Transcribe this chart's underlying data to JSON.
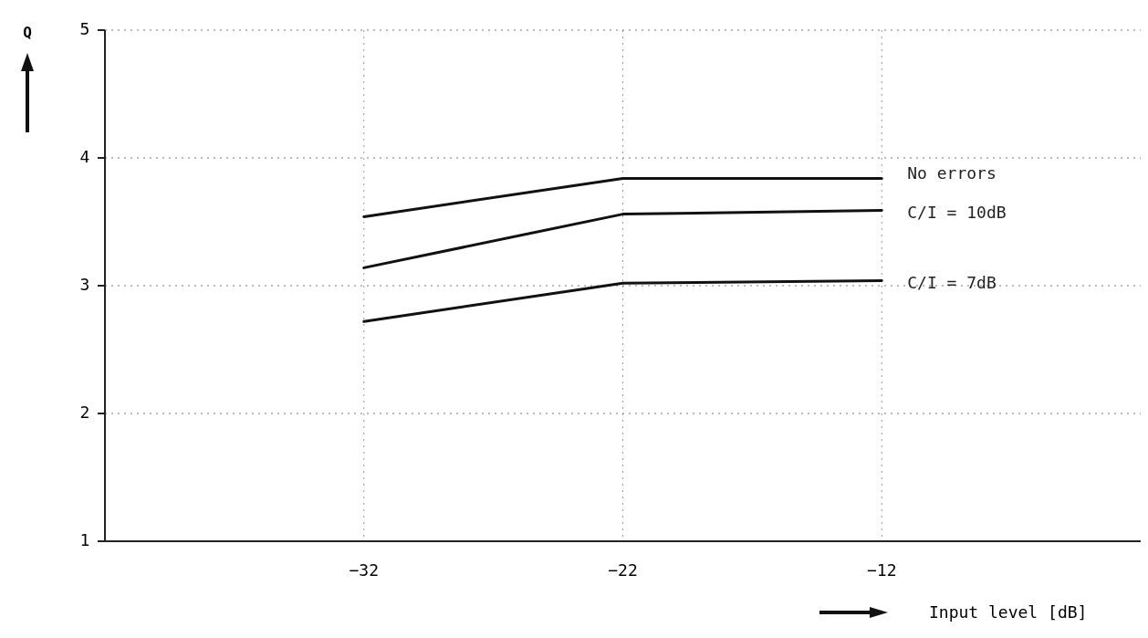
{
  "chart_data": {
    "type": "line",
    "xlabel": "Input level [dB]",
    "ylabel": "Q",
    "x": [
      -32,
      -22,
      -12
    ],
    "series": [
      {
        "name": "No errors",
        "color": "#111111",
        "values": [
          3.54,
          3.84,
          3.84
        ]
      },
      {
        "name": "C/I = 10dB",
        "color": "#111111",
        "values": [
          3.14,
          3.56,
          3.59
        ]
      },
      {
        "name": "C/I = 7dB",
        "color": "#111111",
        "values": [
          2.72,
          3.02,
          3.04
        ]
      }
    ],
    "xlim": [
      -42,
      -2
    ],
    "xticks": [
      -32,
      -22,
      -12
    ],
    "ylim": [
      1,
      5
    ],
    "yticks": [
      1,
      2,
      3,
      4,
      5
    ],
    "grid": true,
    "marker": "none",
    "line_style": "solid"
  }
}
